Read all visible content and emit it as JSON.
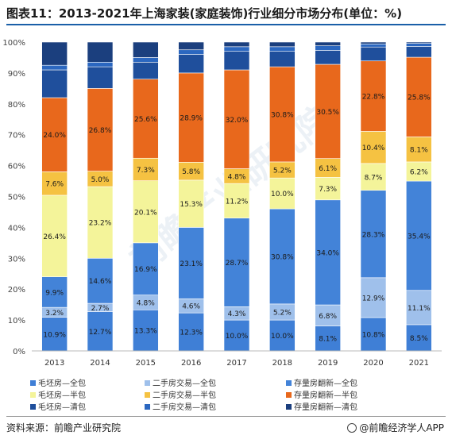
{
  "title": "图表11：2013-2021年上海家装(家庭装饰)行业细分市场分布(单位：%)",
  "footer": {
    "source": "资料来源：前瞻产业研究院",
    "brand": "@前瞻经济学人APP"
  },
  "watermark": "前瞻产业研究院",
  "chart_data": {
    "type": "bar",
    "stacked": true,
    "percent": true,
    "categories": [
      "2013",
      "2014",
      "2015",
      "2016",
      "2017",
      "2018",
      "2019",
      "2020",
      "2021"
    ],
    "ylim": [
      0,
      100
    ],
    "yticks": [
      "0%",
      "10%",
      "20%",
      "30%",
      "40%",
      "50%",
      "60%",
      "70%",
      "80%",
      "90%",
      "100%"
    ],
    "legend_position": "bottom",
    "series": [
      {
        "name": "毛坯房—全包",
        "color": "#3f7fd6",
        "values": [
          10.9,
          12.7,
          13.3,
          12.3,
          10.0,
          10.0,
          8.1,
          10.8,
          8.5
        ],
        "labels": [
          "10.9%",
          "12.7%",
          "13.3%",
          "12.3%",
          "10.0%",
          "10.0%",
          "8.1%",
          "10.8%",
          "8.5%"
        ]
      },
      {
        "name": "二手房交易—全包",
        "color": "#9fc0eb",
        "values": [
          3.2,
          2.7,
          4.8,
          4.6,
          4.3,
          5.2,
          6.8,
          12.9,
          11.1
        ],
        "labels": [
          "3.2%",
          "2.7%",
          "4.8%",
          "4.6%",
          "4.3%",
          "5.2%",
          "6.8%",
          "12.9%",
          "11.1%"
        ]
      },
      {
        "name": "存量房翻新—全包",
        "color": "#4383d8",
        "values": [
          9.9,
          14.6,
          16.9,
          23.1,
          28.7,
          30.8,
          34.0,
          28.3,
          35.4
        ],
        "labels": [
          "9.9%",
          "14.6%",
          "16.9%",
          "23.1%",
          "28.7%",
          "30.8%",
          "34.0%",
          "28.3%",
          "35.4%"
        ]
      },
      {
        "name": "毛坯房—半包",
        "color": "#f4f49a",
        "values": [
          26.4,
          23.2,
          20.1,
          15.3,
          11.2,
          10.0,
          7.3,
          8.7,
          6.2
        ],
        "labels": [
          "26.4%",
          "23.2%",
          "20.1%",
          "15.3%",
          "11.2%",
          "10.0%",
          "7.3%",
          "8.7%",
          "6.2%"
        ]
      },
      {
        "name": "二手房交易—半包",
        "color": "#f5c242",
        "values": [
          7.6,
          5.0,
          7.3,
          5.8,
          4.8,
          5.2,
          6.1,
          10.4,
          8.1
        ],
        "labels": [
          "7.6%",
          "5.0%",
          "7.3%",
          "5.8%",
          "4.8%",
          "5.2%",
          "6.1%",
          "10.4%",
          "8.1%"
        ]
      },
      {
        "name": "存量房翻新—半包",
        "color": "#e8681c",
        "values": [
          24.0,
          26.8,
          25.6,
          28.9,
          32.0,
          30.8,
          30.5,
          22.8,
          25.8
        ],
        "labels": [
          "24.0%",
          "26.8%",
          "25.6%",
          "28.9%",
          "32.0%",
          "30.8%",
          "30.5%",
          "22.8%",
          "25.8%"
        ]
      },
      {
        "name": "毛坯房—清包",
        "color": "#1f4f9c",
        "values": [
          9.0,
          7.0,
          5.5,
          6.0,
          6.0,
          5.0,
          4.5,
          4.5,
          3.5
        ],
        "labels": []
      },
      {
        "name": "二手房交易—清包",
        "color": "#2b67c0",
        "values": [
          1.5,
          1.5,
          1.5,
          1.5,
          1.5,
          1.5,
          1.5,
          1.0,
          1.0
        ],
        "labels": []
      },
      {
        "name": "存量房翻新—清包",
        "color": "#1b3f7e",
        "values": [
          7.5,
          6.5,
          5.0,
          2.5,
          1.5,
          1.5,
          1.2,
          0.6,
          0.4
        ],
        "labels": []
      }
    ]
  }
}
